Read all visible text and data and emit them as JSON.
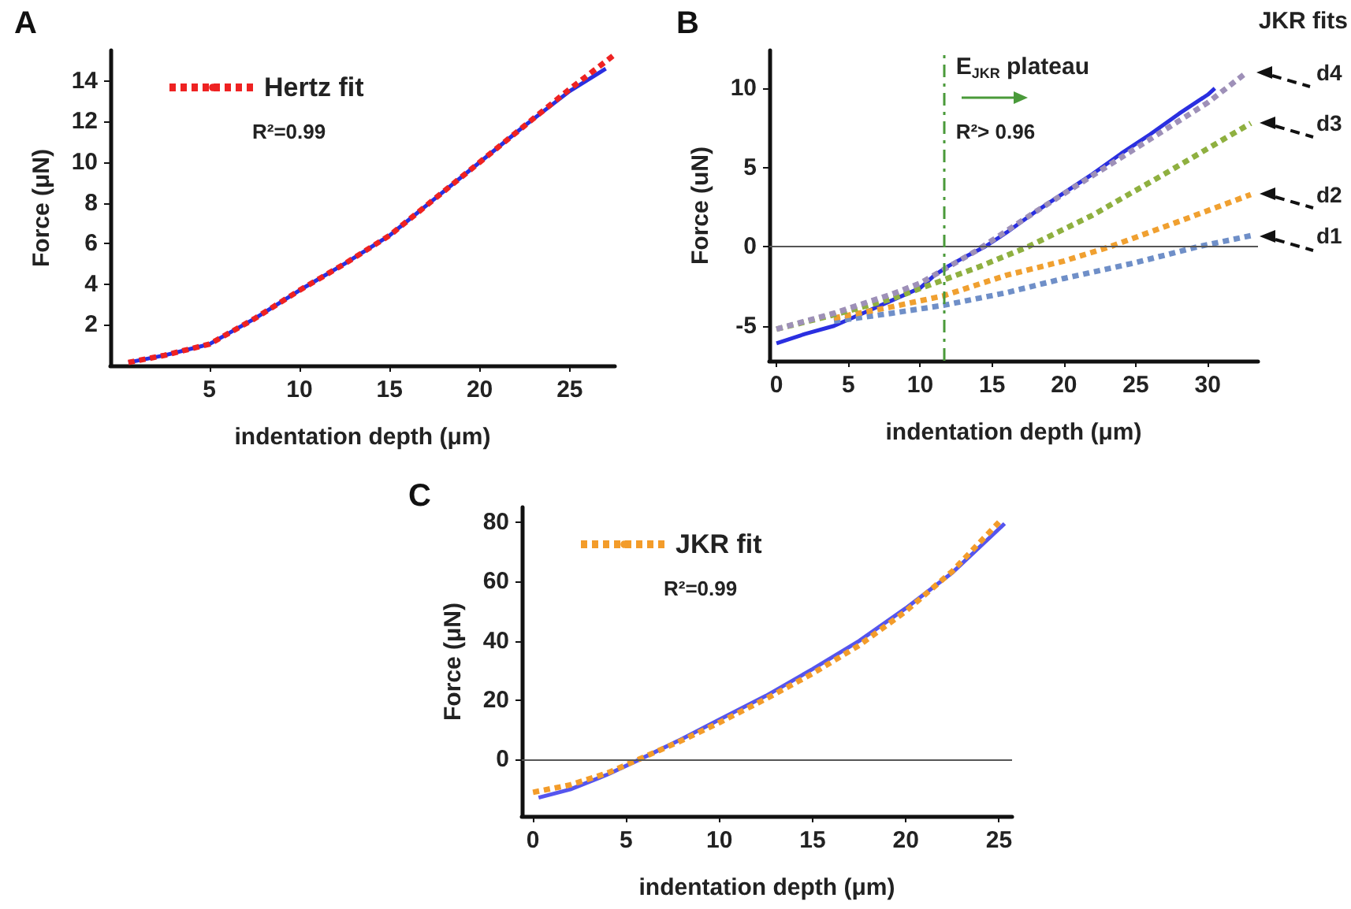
{
  "chart_data": [
    {
      "type": "line",
      "title": "A",
      "xlabel": "indentation depth (μm)",
      "ylabel": "Force (μN)",
      "xlim": [
        -0.5,
        27.5
      ],
      "ylim": [
        0,
        15.5
      ],
      "xticks": [
        5,
        10,
        15,
        20,
        25
      ],
      "yticks": [
        2,
        4,
        6,
        8,
        10,
        12,
        14
      ],
      "grid": false,
      "legend": "top left",
      "annotations": [
        "R²=0.99"
      ],
      "series": [
        {
          "color": "#2a2fe0",
          "line_style": "solid",
          "x": [
            0.5,
            2.5,
            5,
            7.5,
            10,
            12.5,
            15,
            17.5,
            20,
            22.5,
            25,
            27
          ],
          "values": [
            0.15,
            0.5,
            1.05,
            2.3,
            3.7,
            5.0,
            6.4,
            8.2,
            10.0,
            11.8,
            13.5,
            14.6
          ]
        },
        {
          "name": "Hertz fit",
          "color": "#ee2222",
          "line_style": "dotted",
          "x": [
            0.5,
            2.5,
            5,
            7.5,
            10,
            12.5,
            15,
            17.5,
            20,
            22.5,
            25,
            27.5
          ],
          "values": [
            0.15,
            0.5,
            1.05,
            2.3,
            3.7,
            5.0,
            6.4,
            8.2,
            10.0,
            11.8,
            13.6,
            15.3
          ]
        }
      ]
    },
    {
      "type": "line",
      "title": "B",
      "xlabel": "indentation depth (μm)",
      "ylabel": "Force (uN)",
      "xlim": [
        -0.5,
        33.5
      ],
      "ylim": [
        -7.2,
        12.4
      ],
      "xticks": [
        0,
        5,
        10,
        15,
        20,
        25,
        30
      ],
      "yticks": [
        -5,
        0,
        5,
        10
      ],
      "grid": false,
      "legend": "right",
      "legend_title": "JKR fits",
      "annotations": [
        "R²> 0.96"
      ],
      "ref_lines": [
        {
          "axis": "y",
          "value": 0,
          "color": "#555555",
          "line_style": "solid"
        },
        {
          "axis": "x",
          "value": 11.6,
          "label": "E$_{JKR}$ plateau",
          "color": "#4a9a3a",
          "line_style": "dashed"
        }
      ],
      "series": [
        {
          "color": "#2a2fe0",
          "line_style": "solid",
          "x": [
            0,
            2,
            4,
            6,
            8,
            10,
            11,
            12,
            13,
            14.5,
            16,
            18,
            20,
            22,
            24,
            26,
            28,
            30,
            30.5
          ],
          "values": [
            -6.1,
            -5.5,
            -5.0,
            -4.2,
            -3.4,
            -2.6,
            -1.8,
            -1.2,
            -0.7,
            0,
            0.9,
            2.2,
            3.4,
            4.6,
            5.9,
            7.1,
            8.4,
            9.6,
            10.0
          ]
        },
        {
          "name": "d1",
          "color": "#6f8fc8",
          "line_style": "dotted",
          "x": [
            4,
            8,
            11.6,
            16,
            20,
            25,
            29.3,
            33
          ],
          "values": [
            -4.7,
            -4.2,
            -3.7,
            -2.9,
            -2.0,
            -1.0,
            0,
            0.7
          ]
        },
        {
          "name": "d2",
          "color": "#f0a030",
          "line_style": "dotted",
          "x": [
            4,
            8,
            11.6,
            16,
            20,
            23.2,
            28,
            33
          ],
          "values": [
            -4.5,
            -3.8,
            -3.1,
            -1.8,
            -0.9,
            0,
            1.6,
            3.3
          ]
        },
        {
          "name": "d3",
          "color": "#8fb040",
          "line_style": "dotted",
          "x": [
            0,
            4,
            8,
            11.6,
            14,
            17.5,
            22,
            27,
            33
          ],
          "values": [
            -5.2,
            -4.3,
            -3.3,
            -2.1,
            -1.3,
            0,
            2.0,
            4.6,
            7.8
          ]
        },
        {
          "name": "d4",
          "color": "#9e90b8",
          "line_style": "dotted",
          "x": [
            0,
            4,
            8,
            10,
            14,
            18,
            22,
            26,
            30,
            32.7
          ],
          "values": [
            -5.2,
            -4.2,
            -3.0,
            -2.3,
            -0.2,
            2.2,
            4.5,
            6.8,
            9.1,
            11.0
          ]
        }
      ]
    },
    {
      "type": "line",
      "title": "C",
      "xlabel": "indentation depth (μm)",
      "ylabel": "Force (μN)",
      "xlim": [
        -0.6,
        25.7
      ],
      "ylim": [
        -19,
        85
      ],
      "xticks": [
        0,
        5,
        10,
        15,
        20,
        25
      ],
      "yticks": [
        0,
        20,
        40,
        60,
        80
      ],
      "grid": false,
      "legend": "top left",
      "annotations": [
        "R²=0.99"
      ],
      "ref_lines": [
        {
          "axis": "y",
          "value": 0,
          "color": "#555555",
          "line_style": "solid"
        }
      ],
      "series": [
        {
          "color": "#5555ee",
          "line_style": "solid",
          "x": [
            0.3,
            2,
            4,
            5.7,
            8,
            10,
            12.5,
            15,
            17.5,
            20,
            22.5,
            25.3
          ],
          "values": [
            -12.8,
            -10,
            -5,
            0,
            7,
            13.5,
            21.5,
            30.5,
            40,
            51,
            63,
            79.5
          ]
        },
        {
          "name": "JKR fit",
          "color": "#f39c2a",
          "line_style": "dotted",
          "x": [
            0,
            2,
            4,
            6,
            8,
            10,
            12.5,
            15,
            17.5,
            20,
            22.5,
            25
          ],
          "values": [
            -11,
            -8.5,
            -4.5,
            1,
            6.5,
            12.5,
            20.5,
            29,
            38.5,
            50,
            63.5,
            80
          ]
        }
      ]
    }
  ]
}
